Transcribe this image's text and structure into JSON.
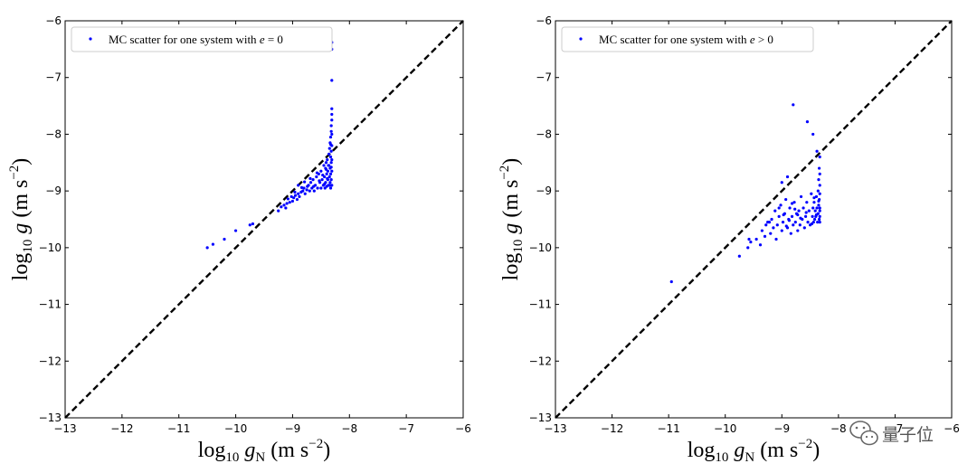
{
  "chart_data": [
    {
      "type": "scatter",
      "panel": "left",
      "xlabel_base": "log",
      "xlabel_sub": "10",
      "xlabel_var": "g",
      "xlabel_var_sub": "N",
      "xlabel_unit": "(m s",
      "xlabel_exp": "−2",
      "xlabel_close": ")",
      "ylabel_base": "log",
      "ylabel_sub": "10",
      "ylabel_var": "g",
      "ylabel_unit": "(m s",
      "ylabel_exp": "−2",
      "ylabel_close": ")",
      "xlim": [
        -13,
        -6
      ],
      "ylim": [
        -13,
        -6
      ],
      "xticks": [
        "−13",
        "−12",
        "−11",
        "−10",
        "−9",
        "−8",
        "−7",
        "−6"
      ],
      "yticks": [
        "−13",
        "−12",
        "−11",
        "−10",
        "−9",
        "−8",
        "−7",
        "−6"
      ],
      "legend_text": "MC scatter for one system with ",
      "legend_math": "e",
      "legend_rel": " = 0",
      "legend_loc": "upper left",
      "reference_line": {
        "style": "dashed",
        "from": [
          -13,
          -13
        ],
        "to": [
          -6,
          -6
        ]
      },
      "color": "#0000ff",
      "series": [
        {
          "name": "MC scatter for one system with e = 0",
          "points": [
            [
              -10.5,
              -10.0
            ],
            [
              -10.4,
              -9.94
            ],
            [
              -10.2,
              -9.85
            ],
            [
              -10.0,
              -9.7
            ],
            [
              -9.75,
              -9.6
            ],
            [
              -9.7,
              -9.58
            ],
            [
              -9.25,
              -9.35
            ],
            [
              -9.2,
              -9.28
            ],
            [
              -9.15,
              -9.25
            ],
            [
              -9.1,
              -9.22
            ],
            [
              -9.05,
              -9.2
            ],
            [
              -9.0,
              -9.18
            ],
            [
              -8.98,
              -9.12
            ],
            [
              -8.95,
              -9.08
            ],
            [
              -8.92,
              -9.15
            ],
            [
              -8.9,
              -9.05
            ],
            [
              -8.88,
              -9.1
            ],
            [
              -8.85,
              -9.02
            ],
            [
              -8.82,
              -9.0
            ],
            [
              -8.8,
              -8.95
            ],
            [
              -8.78,
              -9.05
            ],
            [
              -8.75,
              -8.98
            ],
            [
              -8.72,
              -8.9
            ],
            [
              -8.7,
              -9.0
            ],
            [
              -8.68,
              -8.85
            ],
            [
              -8.66,
              -8.95
            ],
            [
              -8.64,
              -8.8
            ],
            [
              -8.62,
              -9.0
            ],
            [
              -8.6,
              -8.9
            ],
            [
              -8.58,
              -8.75
            ],
            [
              -8.56,
              -8.95
            ],
            [
              -8.54,
              -8.7
            ],
            [
              -8.52,
              -8.85
            ],
            [
              -8.5,
              -8.95
            ],
            [
              -8.5,
              -8.65
            ],
            [
              -8.48,
              -8.8
            ],
            [
              -8.46,
              -8.9
            ],
            [
              -8.45,
              -8.55
            ],
            [
              -8.44,
              -8.75
            ],
            [
              -8.43,
              -8.95
            ],
            [
              -8.42,
              -8.6
            ],
            [
              -8.42,
              -8.85
            ],
            [
              -8.41,
              -8.5
            ],
            [
              -8.4,
              -8.7
            ],
            [
              -8.4,
              -8.92
            ],
            [
              -8.39,
              -8.45
            ],
            [
              -8.38,
              -8.65
            ],
            [
              -8.38,
              -8.8
            ],
            [
              -8.37,
              -8.9
            ],
            [
              -8.36,
              -8.35
            ],
            [
              -8.36,
              -8.55
            ],
            [
              -8.35,
              -8.75
            ],
            [
              -8.35,
              -8.25
            ],
            [
              -8.34,
              -8.6
            ],
            [
              -8.34,
              -8.85
            ],
            [
              -8.34,
              -8.15
            ],
            [
              -8.33,
              -8.4
            ],
            [
              -8.33,
              -8.7
            ],
            [
              -8.33,
              -8.05
            ],
            [
              -8.33,
              -8.95
            ],
            [
              -8.32,
              -8.3
            ],
            [
              -8.32,
              -8.5
            ],
            [
              -8.32,
              -7.95
            ],
            [
              -8.32,
              -8.8
            ],
            [
              -8.32,
              -7.85
            ],
            [
              -8.31,
              -8.2
            ],
            [
              -8.31,
              -8.65
            ],
            [
              -8.31,
              -7.75
            ],
            [
              -8.31,
              -8.9
            ],
            [
              -8.31,
              -7.65
            ],
            [
              -8.31,
              -8.0
            ],
            [
              -8.31,
              -8.45
            ],
            [
              -8.31,
              -7.55
            ],
            [
              -8.31,
              -7.05
            ],
            [
              -8.31,
              -6.5
            ],
            [
              -8.31,
              -6.38
            ],
            [
              -8.32,
              -8.58
            ],
            [
              -8.33,
              -8.18
            ],
            [
              -8.35,
              -8.9
            ],
            [
              -8.37,
              -8.55
            ],
            [
              -8.39,
              -8.78
            ],
            [
              -8.41,
              -8.62
            ],
            [
              -8.44,
              -8.88
            ],
            [
              -8.47,
              -8.72
            ],
            [
              -8.53,
              -8.82
            ],
            [
              -8.57,
              -8.68
            ],
            [
              -8.63,
              -8.92
            ],
            [
              -8.69,
              -8.78
            ],
            [
              -8.74,
              -8.92
            ],
            [
              -8.79,
              -8.84
            ],
            [
              -8.84,
              -8.94
            ],
            [
              -8.9,
              -8.9
            ],
            [
              -8.96,
              -9.02
            ],
            [
              -9.02,
              -9.1
            ],
            [
              -9.08,
              -9.14
            ],
            [
              -9.12,
              -9.3
            ]
          ]
        }
      ]
    },
    {
      "type": "scatter",
      "panel": "right",
      "xlabel_base": "log",
      "xlabel_sub": "10",
      "xlabel_var": "g",
      "xlabel_var_sub": "N",
      "xlabel_unit": "(m s",
      "xlabel_exp": "−2",
      "xlabel_close": ")",
      "ylabel_base": "log",
      "ylabel_sub": "10",
      "ylabel_var": "g",
      "ylabel_unit": "(m s",
      "ylabel_exp": "−2",
      "ylabel_close": ")",
      "xlim": [
        -13,
        -6
      ],
      "ylim": [
        -13,
        -6
      ],
      "xticks": [
        "−13",
        "−12",
        "−11",
        "−10",
        "−9",
        "−8",
        "−7",
        "−6"
      ],
      "yticks": [
        "−13",
        "−12",
        "−11",
        "−10",
        "−9",
        "−8",
        "−7",
        "−6"
      ],
      "legend_text": "MC scatter for one system with ",
      "legend_math": "e",
      "legend_rel": " > 0",
      "legend_loc": "upper left",
      "reference_line": {
        "style": "dashed",
        "from": [
          -13,
          -13
        ],
        "to": [
          -6,
          -6
        ]
      },
      "color": "#0000ff",
      "series": [
        {
          "name": "MC scatter for one system with e > 0",
          "points": [
            [
              -10.95,
              -10.6
            ],
            [
              -9.75,
              -10.15
            ],
            [
              -9.6,
              -10.0
            ],
            [
              -9.58,
              -9.85
            ],
            [
              -9.55,
              -9.9
            ],
            [
              -9.45,
              -9.85
            ],
            [
              -9.38,
              -9.95
            ],
            [
              -9.35,
              -9.7
            ],
            [
              -9.3,
              -9.8
            ],
            [
              -9.25,
              -9.55
            ],
            [
              -9.2,
              -9.75
            ],
            [
              -9.18,
              -9.5
            ],
            [
              -9.15,
              -9.65
            ],
            [
              -9.12,
              -9.35
            ],
            [
              -9.1,
              -9.85
            ],
            [
              -9.08,
              -9.6
            ],
            [
              -9.05,
              -9.45
            ],
            [
              -9.02,
              -9.25
            ],
            [
              -9.0,
              -9.7
            ],
            [
              -8.98,
              -9.55
            ],
            [
              -8.95,
              -9.4
            ],
            [
              -8.93,
              -9.15
            ],
            [
              -8.9,
              -9.65
            ],
            [
              -8.88,
              -9.5
            ],
            [
              -8.86,
              -9.3
            ],
            [
              -8.84,
              -9.75
            ],
            [
              -8.82,
              -9.45
            ],
            [
              -8.8,
              -9.6
            ],
            [
              -8.78,
              -9.2
            ],
            [
              -8.76,
              -9.55
            ],
            [
              -8.74,
              -9.4
            ],
            [
              -8.72,
              -9.7
            ],
            [
              -8.7,
              -9.35
            ],
            [
              -8.68,
              -9.6
            ],
            [
              -8.66,
              -9.1
            ],
            [
              -8.64,
              -9.5
            ],
            [
              -8.62,
              -9.3
            ],
            [
              -8.6,
              -9.65
            ],
            [
              -8.58,
              -9.45
            ],
            [
              -8.56,
              -9.2
            ],
            [
              -8.54,
              -9.55
            ],
            [
              -8.52,
              -9.35
            ],
            [
              -8.5,
              -9.6
            ],
            [
              -8.48,
              -9.05
            ],
            [
              -8.46,
              -9.45
            ],
            [
              -8.45,
              -9.3
            ],
            [
              -8.44,
              -9.55
            ],
            [
              -8.43,
              -9.2
            ],
            [
              -8.42,
              -9.5
            ],
            [
              -8.41,
              -9.35
            ],
            [
              -8.4,
              -9.45
            ],
            [
              -8.39,
              -9.1
            ],
            [
              -8.38,
              -9.3
            ],
            [
              -8.37,
              -9.55
            ],
            [
              -8.36,
              -9.0
            ],
            [
              -8.36,
              -9.4
            ],
            [
              -8.35,
              -8.8
            ],
            [
              -8.35,
              -9.25
            ],
            [
              -8.34,
              -9.5
            ],
            [
              -8.34,
              -8.6
            ],
            [
              -8.34,
              -9.15
            ],
            [
              -8.33,
              -9.35
            ],
            [
              -8.33,
              -8.4
            ],
            [
              -8.33,
              -9.45
            ],
            [
              -8.33,
              -8.9
            ],
            [
              -8.33,
              -9.55
            ],
            [
              -8.33,
              -9.05
            ],
            [
              -8.33,
              -8.7
            ],
            [
              -8.33,
              -9.3
            ],
            [
              -8.9,
              -8.75
            ],
            [
              -9.0,
              -8.85
            ],
            [
              -8.8,
              -7.48
            ],
            [
              -8.55,
              -7.78
            ],
            [
              -8.45,
              -8.0
            ],
            [
              -8.38,
              -8.3
            ],
            [
              -9.22,
              -9.55
            ],
            [
              -9.28,
              -9.6
            ],
            [
              -9.05,
              -9.3
            ],
            [
              -8.97,
              -9.42
            ],
            [
              -8.87,
              -9.52
            ],
            [
              -8.77,
              -9.32
            ],
            [
              -8.67,
              -9.48
            ],
            [
              -8.57,
              -9.38
            ],
            [
              -8.47,
              -9.58
            ],
            [
              -8.43,
              -9.12
            ],
            [
              -8.39,
              -9.42
            ],
            [
              -8.35,
              -9.18
            ],
            [
              -8.92,
              -9.62
            ],
            [
              -8.82,
              -9.22
            ],
            [
              -8.72,
              -9.42
            ]
          ]
        }
      ]
    }
  ],
  "watermark": {
    "text": "量子位"
  }
}
